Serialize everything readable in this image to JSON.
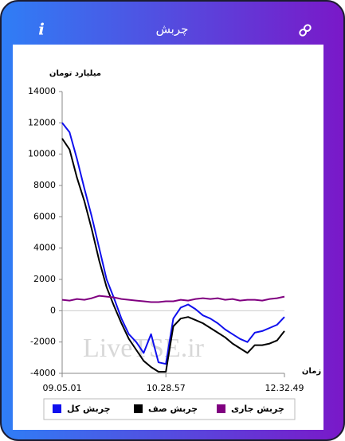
{
  "header": {
    "info_icon": "i",
    "title": "چربش"
  },
  "watermark": "LiveTSE.ir",
  "chart_data": {
    "type": "line",
    "y_label": "میلیارد تومان",
    "x_label": "زمان",
    "categories": [
      "09.05.01",
      null,
      null,
      null,
      null,
      null,
      null,
      null,
      null,
      null,
      null,
      null,
      null,
      null,
      "10.28.57",
      null,
      null,
      null,
      null,
      null,
      null,
      null,
      null,
      null,
      null,
      null,
      null,
      null,
      null,
      null,
      "12.32.49"
    ],
    "ylim": [
      -4000,
      14000
    ],
    "yticks": [
      -4000,
      -2000,
      0,
      2000,
      4000,
      6000,
      8000,
      10000,
      12000,
      14000
    ],
    "grid": false,
    "legend": "bottom",
    "series": [
      {
        "name": "چربش کل",
        "color": "#1010ee",
        "values": [
          12000,
          11400,
          9700,
          7800,
          6000,
          4000,
          2000,
          800,
          -500,
          -1500,
          -2000,
          -2700,
          -1500,
          -3300,
          -3400,
          -500,
          200,
          400,
          100,
          -300,
          -500,
          -800,
          -1200,
          -1500,
          -1800,
          -2000,
          -1400,
          -1300,
          -1100,
          -900,
          -400
        ]
      },
      {
        "name": "چربش صف",
        "color": "#000000",
        "values": [
          11000,
          10300,
          8500,
          7000,
          5200,
          3200,
          1500,
          300,
          -800,
          -1800,
          -2500,
          -3200,
          -3600,
          -3900,
          -3900,
          -1000,
          -500,
          -400,
          -600,
          -800,
          -1100,
          -1400,
          -1700,
          -2100,
          -2400,
          -2700,
          -2200,
          -2200,
          -2100,
          -1900,
          -1300
        ]
      },
      {
        "name": "چربش جاری",
        "color": "#800080",
        "values": [
          700,
          650,
          750,
          700,
          800,
          950,
          900,
          850,
          750,
          700,
          650,
          600,
          550,
          550,
          600,
          600,
          700,
          650,
          750,
          800,
          750,
          800,
          700,
          750,
          650,
          700,
          700,
          650,
          750,
          800,
          900
        ]
      }
    ]
  }
}
